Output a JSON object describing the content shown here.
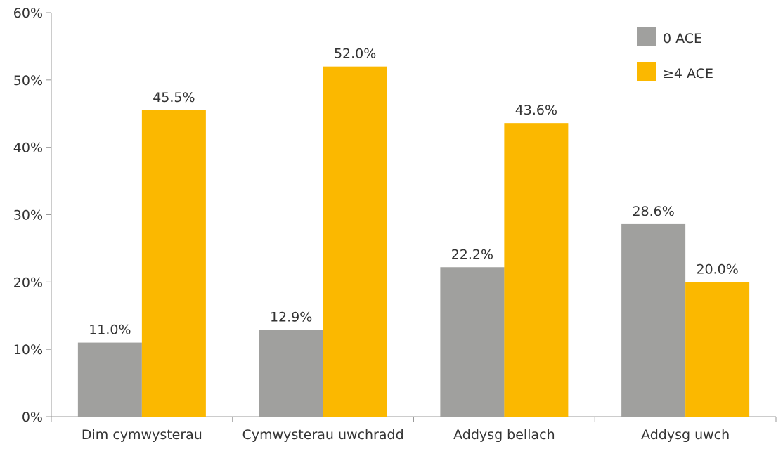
{
  "chart_data": {
    "type": "bar",
    "title": "",
    "xlabel": "",
    "ylabel": "",
    "categories": [
      "Dim cymwysterau",
      "Cymwysterau uwchradd",
      "Addysg bellach",
      "Addysg uwch"
    ],
    "series": [
      {
        "name": "0 ACE",
        "color": "#a0a09e",
        "values": [
          11.0,
          12.9,
          22.2,
          28.6
        ],
        "labels": [
          "11.0%",
          "12.9%",
          "22.2%",
          "28.6%"
        ]
      },
      {
        "name": "≥4 ACE",
        "color": "#fbb800",
        "values": [
          45.5,
          52.0,
          43.6,
          20.0
        ],
        "labels": [
          "45.5%",
          "52.0%",
          "43.6%",
          "20.0%"
        ]
      }
    ],
    "ylim": [
      0,
      60
    ],
    "yticks": [
      0,
      10,
      20,
      30,
      40,
      50,
      60
    ],
    "ytick_labels": [
      "0%",
      "10%",
      "20%",
      "30%",
      "40%",
      "50%",
      "60%"
    ],
    "grid": false,
    "legend_position": "top-right",
    "axis_color": "#999999"
  }
}
